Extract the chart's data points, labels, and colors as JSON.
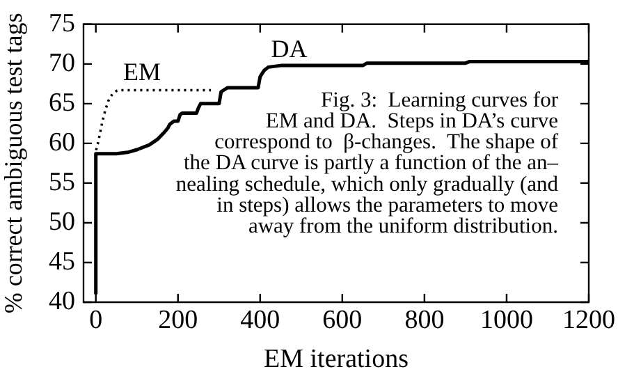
{
  "chart_data": {
    "type": "line",
    "xlabel": "EM iterations",
    "ylabel": "% correct ambiguous test tags",
    "xlim": [
      -30,
      1200
    ],
    "xticks": [
      0,
      200,
      400,
      600,
      800,
      1000,
      1200
    ],
    "ylim": [
      40,
      75
    ],
    "yticks": [
      40,
      45,
      50,
      55,
      60,
      65,
      70,
      75
    ],
    "grid": false,
    "legend": false,
    "marker": "none",
    "series": [
      {
        "color": "#000000",
        "line_style": "dotted",
        "x": [
          0,
          0,
          5,
          10,
          15,
          20,
          25,
          30,
          40,
          50,
          60,
          100,
          200,
          280
        ],
        "values": [
          41,
          59,
          60,
          61.2,
          62.5,
          63.6,
          64.5,
          65.3,
          66.2,
          66.6,
          66.7,
          66.7,
          66.7,
          66.7
        ]
      },
      {
        "color": "#000000",
        "line_style": "solid",
        "x": [
          0,
          0,
          10,
          50,
          80,
          100,
          130,
          150,
          165,
          175,
          180,
          190,
          200,
          205,
          210,
          245,
          250,
          255,
          300,
          305,
          320,
          395,
          400,
          410,
          420,
          450,
          650,
          660,
          900,
          910,
          1200
        ],
        "values": [
          41,
          58.7,
          58.7,
          58.7,
          58.9,
          59.2,
          59.8,
          60.5,
          61.3,
          61.9,
          62.4,
          62.8,
          62.8,
          63.6,
          63.8,
          63.8,
          64.5,
          65,
          65,
          66.5,
          67,
          67,
          68.4,
          69.2,
          69.6,
          69.8,
          69.8,
          70.1,
          70.1,
          70.3,
          70.3
        ]
      }
    ],
    "annotations": [
      "EM",
      "DA",
      "Fig. 3:  Learning curves for\nEM and DA.  Steps in DA’s curve\ncorrespond to  β-changes.  The shape of\nthe DA curve is partly a function of the an–\nnealing schedule, which only gradually (and\nin steps) allows the parameters to move\naway from the uniform distribution."
    ]
  }
}
